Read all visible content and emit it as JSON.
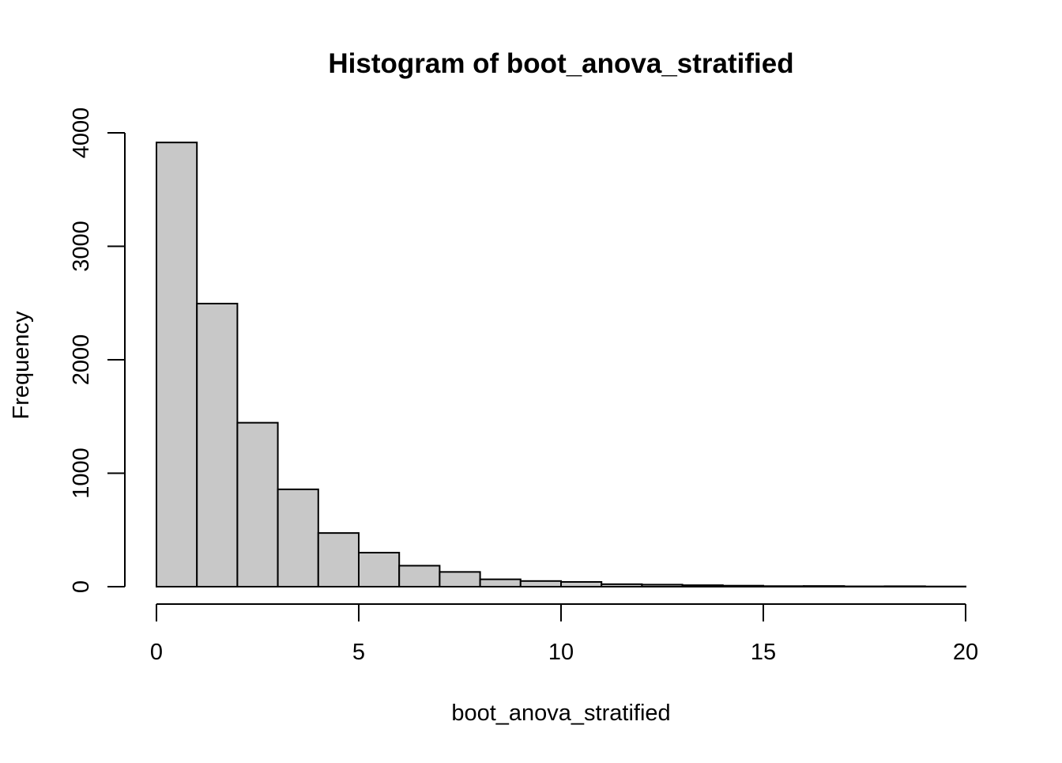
{
  "chart_data": {
    "type": "bar",
    "subtype": "histogram",
    "title": "Histogram of boot_anova_stratified",
    "xlabel": "boot_anova_stratified",
    "ylabel": "Frequency",
    "bin_edges": [
      0,
      1,
      2,
      3,
      4,
      5,
      6,
      7,
      8,
      9,
      10,
      11,
      12,
      13,
      14,
      15,
      16,
      17,
      18,
      19,
      20
    ],
    "values": [
      3915,
      2495,
      1445,
      858,
      473,
      300,
      185,
      130,
      65,
      50,
      42,
      22,
      18,
      13,
      9,
      5,
      6,
      3,
      4,
      2
    ],
    "xlim": [
      0,
      20
    ],
    "ylim": [
      0,
      4000
    ],
    "xticks": [
      "0",
      "5",
      "10",
      "15",
      "20"
    ],
    "yticks": [
      "0",
      "1000",
      "2000",
      "3000",
      "4000"
    ],
    "bar_fill": "#c8c8c8",
    "bar_stroke": "#000000",
    "grid": false
  }
}
